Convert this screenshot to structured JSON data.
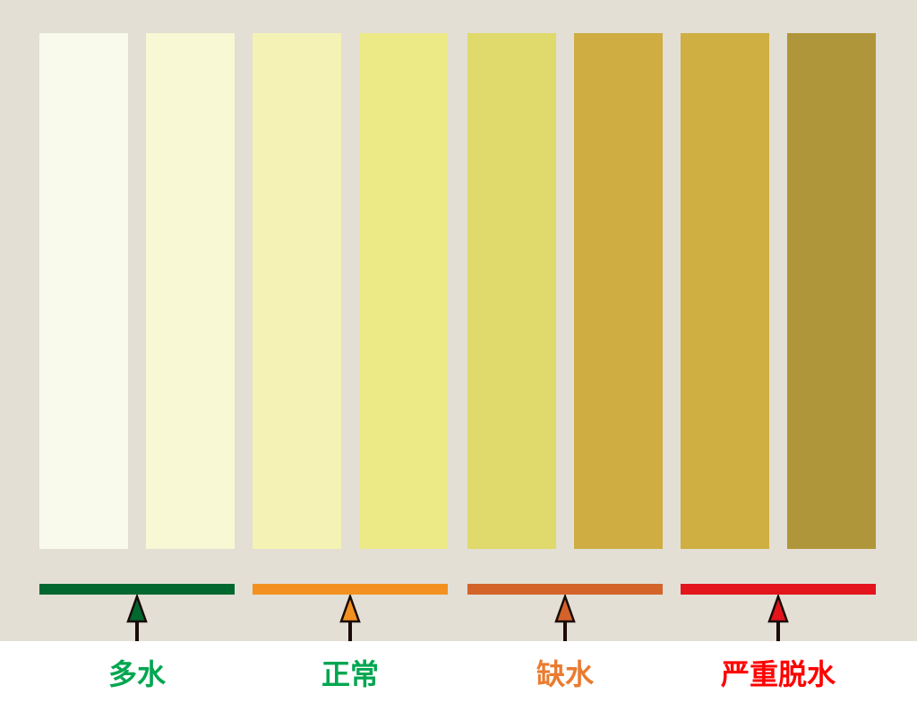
{
  "swatches": [
    "#f9faec",
    "#f8f8d4",
    "#f4f2b4",
    "#ece987",
    "#e0d96b",
    "#cfad42",
    "#cfae42",
    "#b0963a"
  ],
  "background": "#e3dfd4",
  "categories": [
    {
      "label": "多水",
      "bar_color": "#00682f",
      "label_color": "#00a650"
    },
    {
      "label": "正常",
      "bar_color": "#f2911f",
      "label_color": "#00a650"
    },
    {
      "label": "缺水",
      "bar_color": "#d4632a",
      "label_color": "#ea7b30"
    },
    {
      "label": "严重脱水",
      "bar_color": "#e3141c",
      "label_color": "#ff0000"
    }
  ]
}
